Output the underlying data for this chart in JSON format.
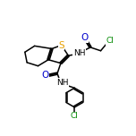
{
  "bg_color": "#ffffff",
  "bond_color": "#000000",
  "atom_colors": {
    "S": "#e8a000",
    "O": "#0000cc",
    "N": "#000000",
    "Cl": "#008800",
    "C": "#000000"
  },
  "line_width": 1.1,
  "font_size": 6.5,
  "figsize": [
    1.52,
    1.52
  ],
  "dpi": 100
}
